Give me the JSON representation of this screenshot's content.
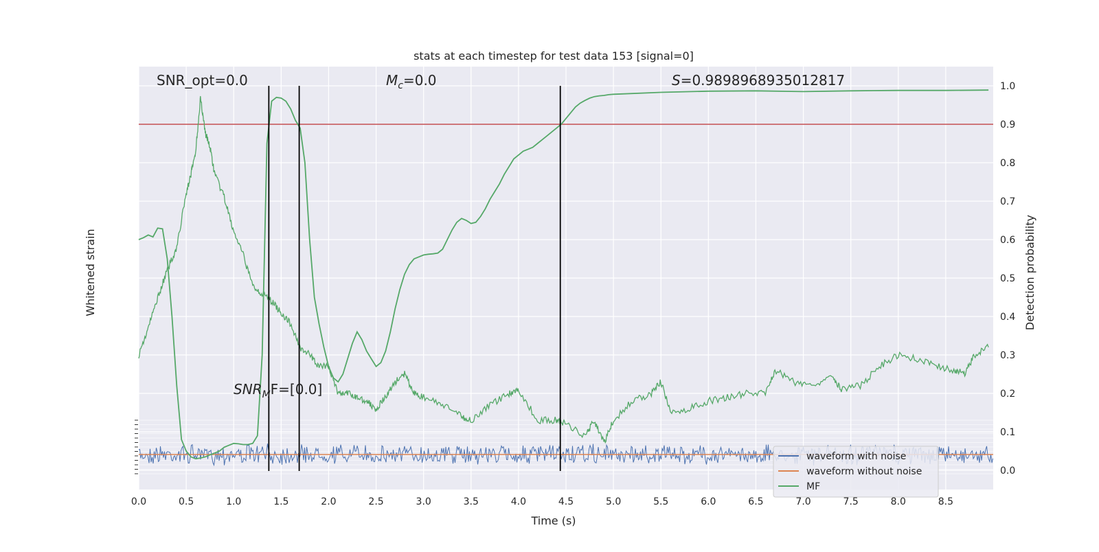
{
  "chart_data": {
    "type": "line",
    "title": "stats at each timestep for test data 153 [signal=0]",
    "xlabel": "Time (s)",
    "ylabel_left": "Whitened strain",
    "ylabel_right": "Detection probability",
    "xlim": [
      0.0,
      9.0
    ],
    "ylim_right": [
      -0.05,
      1.05
    ],
    "grid": true,
    "x_ticks": [
      "0.0",
      "0.5",
      "1.0",
      "1.5",
      "2.0",
      "2.5",
      "3.0",
      "3.5",
      "4.0",
      "4.5",
      "5.0",
      "5.5",
      "6.0",
      "6.5",
      "7.0",
      "7.5",
      "8.0",
      "8.5"
    ],
    "y_ticks_right": [
      "0.0",
      "0.1",
      "0.2",
      "0.3",
      "0.4",
      "0.5",
      "0.6",
      "0.7",
      "0.8",
      "0.9",
      "1.0"
    ],
    "threshold": 0.9,
    "vertical_markers": [
      1.37,
      1.69,
      4.44
    ],
    "annotations": {
      "snr_opt": "SNR_opt=0.0",
      "mc_prefix": "M",
      "mc_sub": "c",
      "mc_suffix": "=0.0",
      "s_prefix": "S",
      "s_suffix": "=0.9898968935012817",
      "snr_mf_prefix": "SNR",
      "snr_mf_sub": "M",
      "snr_mf_suffix": "F=[0.0]"
    },
    "legend": {
      "position": "lower-right",
      "entries": [
        "waveform with noise",
        "waveform without noise",
        "MF"
      ]
    },
    "series": [
      {
        "name": "MF",
        "color": "#55a868",
        "x": [
          0.0,
          0.05,
          0.1,
          0.15,
          0.2,
          0.25,
          0.3,
          0.35,
          0.4,
          0.45,
          0.5,
          0.55,
          0.6,
          0.65,
          0.7,
          0.75,
          0.8,
          0.85,
          0.9,
          0.95,
          1.0,
          1.05,
          1.1,
          1.15,
          1.2,
          1.25,
          1.3,
          1.35,
          1.4,
          1.45,
          1.5,
          1.55,
          1.6,
          1.65,
          1.7,
          1.75,
          1.8,
          1.85,
          1.9,
          1.95,
          2.0,
          2.05,
          2.1,
          2.15,
          2.2,
          2.25,
          2.3,
          2.35,
          2.4,
          2.45,
          2.5,
          2.55,
          2.6,
          2.65,
          2.7,
          2.75,
          2.8,
          2.85,
          2.9,
          2.95,
          3.0,
          3.05,
          3.1,
          3.15,
          3.2,
          3.25,
          3.3,
          3.35,
          3.4,
          3.45,
          3.5,
          3.55,
          3.6,
          3.65,
          3.7,
          3.75,
          3.8,
          3.85,
          3.9,
          3.95,
          4.0,
          4.05,
          4.1,
          4.15,
          4.2,
          4.25,
          4.3,
          4.35,
          4.4,
          4.45,
          4.5,
          4.55,
          4.6,
          4.65,
          4.7,
          4.75,
          4.8,
          4.85,
          4.9,
          4.95,
          5.0,
          5.5,
          6.0,
          6.5,
          7.0,
          7.5,
          8.0,
          8.5,
          8.95
        ],
        "y": [
          0.6,
          0.605,
          0.612,
          0.607,
          0.63,
          0.628,
          0.55,
          0.4,
          0.22,
          0.08,
          0.05,
          0.035,
          0.03,
          0.032,
          0.035,
          0.04,
          0.045,
          0.05,
          0.06,
          0.065,
          0.07,
          0.069,
          0.067,
          0.067,
          0.07,
          0.09,
          0.3,
          0.85,
          0.96,
          0.97,
          0.968,
          0.96,
          0.94,
          0.91,
          0.89,
          0.8,
          0.6,
          0.45,
          0.38,
          0.32,
          0.27,
          0.24,
          0.23,
          0.25,
          0.29,
          0.33,
          0.36,
          0.34,
          0.31,
          0.29,
          0.27,
          0.28,
          0.31,
          0.36,
          0.42,
          0.47,
          0.51,
          0.535,
          0.55,
          0.555,
          0.56,
          0.562,
          0.563,
          0.565,
          0.575,
          0.6,
          0.625,
          0.645,
          0.655,
          0.65,
          0.642,
          0.645,
          0.66,
          0.68,
          0.705,
          0.725,
          0.745,
          0.77,
          0.79,
          0.81,
          0.82,
          0.83,
          0.835,
          0.84,
          0.85,
          0.86,
          0.87,
          0.88,
          0.89,
          0.9,
          0.915,
          0.93,
          0.945,
          0.955,
          0.962,
          0.968,
          0.972,
          0.974,
          0.975,
          0.977,
          0.978,
          0.983,
          0.986,
          0.987,
          0.985,
          0.987,
          0.988,
          0.988,
          0.989
        ]
      },
      {
        "name": "waveform with noise",
        "color": "#4c72b0"
      },
      {
        "name": "waveform without noise",
        "color": "#dd8452"
      }
    ],
    "mf_noisy_trace_anchors": {
      "x": [
        0.0,
        0.1,
        0.2,
        0.3,
        0.4,
        0.5,
        0.55,
        0.6,
        0.65,
        0.7,
        0.75,
        0.8,
        0.9,
        1.0,
        1.1,
        1.2,
        1.3,
        1.4,
        1.5,
        1.6,
        1.7,
        1.8,
        1.9,
        2.0,
        2.1,
        2.2,
        2.3,
        2.4,
        2.5,
        2.6,
        2.7,
        2.8,
        2.9,
        3.0,
        3.2,
        3.4,
        3.5,
        3.7,
        3.9,
        4.0,
        4.2,
        4.4,
        4.5,
        4.7,
        4.8,
        4.9,
        5.0,
        5.2,
        5.4,
        5.5,
        5.6,
        5.8,
        6.0,
        6.2,
        6.4,
        6.6,
        6.7,
        6.9,
        7.1,
        7.3,
        7.4,
        7.6,
        7.8,
        8.0,
        8.2,
        8.4,
        8.6,
        8.7,
        8.8,
        8.95
      ],
      "y": [
        0.3,
        0.37,
        0.45,
        0.52,
        0.58,
        0.72,
        0.77,
        0.83,
        0.97,
        0.88,
        0.84,
        0.77,
        0.71,
        0.62,
        0.56,
        0.48,
        0.46,
        0.44,
        0.41,
        0.38,
        0.32,
        0.3,
        0.27,
        0.27,
        0.2,
        0.2,
        0.19,
        0.18,
        0.16,
        0.19,
        0.23,
        0.25,
        0.2,
        0.19,
        0.17,
        0.14,
        0.13,
        0.17,
        0.2,
        0.21,
        0.13,
        0.13,
        0.12,
        0.09,
        0.13,
        0.07,
        0.13,
        0.18,
        0.2,
        0.23,
        0.15,
        0.16,
        0.18,
        0.19,
        0.2,
        0.2,
        0.26,
        0.23,
        0.22,
        0.25,
        0.21,
        0.22,
        0.27,
        0.3,
        0.29,
        0.27,
        0.26,
        0.25,
        0.3,
        0.32
      ]
    }
  }
}
